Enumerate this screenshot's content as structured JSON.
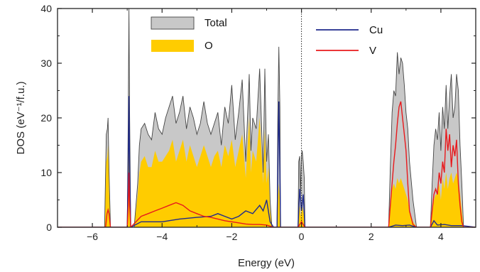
{
  "chart_data": {
    "type": "area",
    "xlabel": "Energy (eV)",
    "ylabel": "DOS (eV⁻¹/f.u.)",
    "xlim": [
      -7,
      5
    ],
    "ylim": [
      0,
      40
    ],
    "x_ticks": [
      -6,
      -4,
      -2,
      0,
      2,
      4
    ],
    "x_tick_labels": [
      "−6",
      "−4",
      "−2",
      "0",
      "2",
      "4"
    ],
    "y_ticks": [
      0,
      10,
      20,
      30,
      40
    ],
    "y_tick_labels": [
      "0",
      "10",
      "20",
      "30",
      "40"
    ],
    "fermi_level": 0,
    "legend": [
      {
        "label": "Total",
        "style": "fill",
        "color": "#c8c8c8"
      },
      {
        "label": "O",
        "style": "fill",
        "color": "#ffcc00"
      },
      {
        "label": "Cu",
        "style": "line",
        "color": "#1f2a8c"
      },
      {
        "label": "V",
        "style": "line",
        "color": "#e8191c"
      }
    ],
    "series": [
      {
        "name": "Total",
        "color": "#c8c8c8",
        "edge": "#444444",
        "x": [
          -7,
          -5.65,
          -5.6,
          -5.57,
          -5.55,
          -5.52,
          -5.48,
          -5.4,
          -5.0,
          -4.97,
          -4.95,
          -4.93,
          -4.9,
          -4.8,
          -4.7,
          -4.65,
          -4.6,
          -4.5,
          -4.4,
          -4.3,
          -4.2,
          -4.1,
          -4.0,
          -3.9,
          -3.8,
          -3.7,
          -3.6,
          -3.5,
          -3.4,
          -3.3,
          -3.2,
          -3.1,
          -3.0,
          -2.9,
          -2.8,
          -2.7,
          -2.6,
          -2.5,
          -2.4,
          -2.3,
          -2.2,
          -2.1,
          -2.0,
          -1.9,
          -1.8,
          -1.7,
          -1.6,
          -1.5,
          -1.45,
          -1.4,
          -1.3,
          -1.2,
          -1.1,
          -1.05,
          -1.0,
          -0.95,
          -0.9,
          -0.85,
          -0.8,
          -0.7,
          -0.68,
          -0.65,
          -0.62,
          -0.6,
          -0.5,
          -0.1,
          -0.08,
          -0.05,
          -0.03,
          0.0,
          0.02,
          0.05,
          0.08,
          0.1,
          2.5,
          2.55,
          2.6,
          2.65,
          2.7,
          2.75,
          2.8,
          2.85,
          2.9,
          2.95,
          3.0,
          3.05,
          3.1,
          3.2,
          3.3,
          3.7,
          3.75,
          3.8,
          3.85,
          3.9,
          3.95,
          4.0,
          4.05,
          4.1,
          4.15,
          4.2,
          4.25,
          4.3,
          4.35,
          4.4,
          4.45,
          4.5,
          4.55,
          4.6,
          4.65,
          5.0
        ],
        "values": [
          0,
          0,
          17,
          18,
          20,
          10,
          0,
          0,
          0,
          20,
          40,
          20,
          0,
          0,
          8,
          15,
          18,
          19,
          17,
          16,
          21,
          18,
          17,
          20,
          22,
          24,
          19,
          21,
          24,
          18,
          22,
          20,
          17,
          19,
          23,
          19,
          17,
          19,
          21,
          15,
          22,
          19,
          26,
          16,
          21,
          27,
          12,
          28,
          14,
          20,
          18,
          29,
          10,
          29,
          12,
          17,
          5,
          0,
          0,
          0,
          20,
          33,
          22,
          0,
          0,
          0,
          12,
          13,
          6,
          13,
          14,
          12,
          9,
          0,
          0,
          11,
          21,
          25,
          24,
          32,
          28,
          31,
          30,
          26,
          21,
          18,
          12,
          5,
          0,
          0,
          8,
          15,
          18,
          16,
          21,
          14,
          22,
          18,
          26,
          18,
          24,
          28,
          20,
          22,
          28,
          25,
          15,
          8,
          0,
          0
        ]
      },
      {
        "name": "O",
        "color": "#ffcc00",
        "x": [
          -7,
          -5.65,
          -5.6,
          -5.57,
          -5.55,
          -5.52,
          -5.48,
          -5.4,
          -5.0,
          -4.97,
          -4.95,
          -4.93,
          -4.9,
          -4.8,
          -4.7,
          -4.65,
          -4.6,
          -4.5,
          -4.4,
          -4.3,
          -4.2,
          -4.1,
          -4.0,
          -3.9,
          -3.8,
          -3.7,
          -3.6,
          -3.5,
          -3.4,
          -3.3,
          -3.2,
          -3.1,
          -3.0,
          -2.9,
          -2.8,
          -2.7,
          -2.6,
          -2.5,
          -2.4,
          -2.3,
          -2.2,
          -2.1,
          -2.0,
          -1.9,
          -1.8,
          -1.7,
          -1.6,
          -1.5,
          -1.45,
          -1.4,
          -1.3,
          -1.2,
          -1.1,
          -1.05,
          -1.0,
          -0.95,
          -0.9,
          -0.85,
          -0.8,
          -0.7,
          -0.68,
          -0.65,
          -0.62,
          -0.6,
          -0.5,
          -0.1,
          -0.08,
          -0.05,
          -0.03,
          0.0,
          0.02,
          0.05,
          0.08,
          0.1,
          2.5,
          2.55,
          2.6,
          2.65,
          2.7,
          2.75,
          2.8,
          2.85,
          2.9,
          2.95,
          3.0,
          3.05,
          3.1,
          3.2,
          3.3,
          3.7,
          3.75,
          3.8,
          3.85,
          3.9,
          3.95,
          4.0,
          4.05,
          4.1,
          4.15,
          4.2,
          4.25,
          4.3,
          4.35,
          4.4,
          4.45,
          4.5,
          4.55,
          4.6,
          4.65,
          5.0
        ],
        "values": [
          0,
          0,
          12,
          13,
          15,
          7,
          0,
          0,
          0,
          12,
          18,
          12,
          0,
          0,
          6,
          10,
          12,
          13,
          11,
          11,
          14,
          12,
          12,
          13,
          14,
          16,
          12,
          14,
          16,
          12,
          15,
          13,
          11,
          13,
          15,
          13,
          11,
          13,
          14,
          11,
          15,
          13,
          16,
          11,
          14,
          17,
          9,
          20,
          10,
          14,
          12,
          20,
          8,
          18,
          8,
          11,
          3,
          0,
          0,
          0,
          5,
          8,
          5,
          0,
          0,
          0,
          3,
          4,
          2,
          3,
          4,
          3,
          2,
          0,
          0,
          4,
          7,
          8,
          7,
          9,
          8,
          9,
          8,
          7,
          6,
          5,
          3,
          1,
          0,
          0,
          3,
          5,
          6,
          6,
          8,
          5,
          9,
          7,
          10,
          7,
          9,
          10,
          8,
          9,
          10,
          9,
          6,
          3,
          0,
          0
        ]
      },
      {
        "name": "Cu",
        "color": "#1f2a8c",
        "x": [
          -7,
          -5.0,
          -4.97,
          -4.95,
          -4.93,
          -4.9,
          -4.6,
          -4.0,
          -3.5,
          -3.0,
          -2.6,
          -2.4,
          -2.2,
          -2.0,
          -1.8,
          -1.6,
          -1.4,
          -1.2,
          -1.1,
          -1.0,
          -0.9,
          -0.8,
          -0.7,
          -0.68,
          -0.65,
          -0.62,
          -0.6,
          -0.5,
          -0.1,
          -0.05,
          0.0,
          0.05,
          0.1,
          2.5,
          2.7,
          2.9,
          3.1,
          3.3,
          3.7,
          3.8,
          3.9,
          4.1,
          4.3,
          4.6,
          5.0
        ],
        "values": [
          0,
          0,
          10,
          24,
          10,
          0,
          1,
          1,
          1.5,
          1.8,
          2,
          2.5,
          2,
          1.5,
          2,
          3,
          2.5,
          4,
          3,
          5,
          1,
          0,
          0,
          10,
          23,
          10,
          0,
          0,
          0,
          7,
          3,
          6,
          0,
          0,
          0.4,
          0.3,
          0.4,
          0,
          0,
          1.2,
          0.4,
          0.5,
          0.3,
          0.3,
          0
        ]
      },
      {
        "name": "V",
        "color": "#e8191c",
        "x": [
          -7,
          -5.62,
          -5.58,
          -5.55,
          -5.52,
          -5.48,
          -5.0,
          -4.97,
          -4.95,
          -4.93,
          -4.9,
          -4.6,
          -4.4,
          -4.2,
          -4.0,
          -3.8,
          -3.6,
          -3.4,
          -3.2,
          -3.0,
          -2.8,
          -2.6,
          -2.4,
          -2.2,
          -2.0,
          -1.8,
          -1.6,
          -1.4,
          -1.2,
          -1.0,
          -0.8,
          -0.5,
          -0.1,
          0.0,
          0.1,
          2.5,
          2.55,
          2.6,
          2.65,
          2.7,
          2.75,
          2.8,
          2.85,
          2.9,
          2.95,
          3.0,
          3.05,
          3.1,
          3.2,
          3.3,
          3.7,
          3.75,
          3.8,
          3.85,
          3.9,
          3.95,
          4.0,
          4.05,
          4.1,
          4.15,
          4.2,
          4.25,
          4.3,
          4.35,
          4.4,
          4.45,
          4.5,
          4.55,
          4.6,
          4.65,
          5.0
        ],
        "values": [
          0,
          0,
          2.5,
          3.2,
          2.5,
          0,
          0,
          4,
          10,
          4,
          0,
          2,
          2.5,
          3,
          3.5,
          4,
          4.5,
          4,
          3,
          2.5,
          2,
          1.8,
          1.5,
          1.2,
          1,
          0.8,
          0.6,
          0.5,
          0.5,
          0.4,
          0,
          0,
          0,
          1,
          0,
          0,
          4,
          8,
          12,
          15,
          19,
          22,
          23,
          20,
          17,
          14,
          8,
          3,
          0.5,
          0,
          0,
          3,
          6,
          7,
          6,
          10,
          8,
          12,
          10,
          18,
          14,
          17,
          11,
          15,
          13,
          16,
          8,
          4,
          1,
          0,
          0
        ]
      }
    ]
  }
}
